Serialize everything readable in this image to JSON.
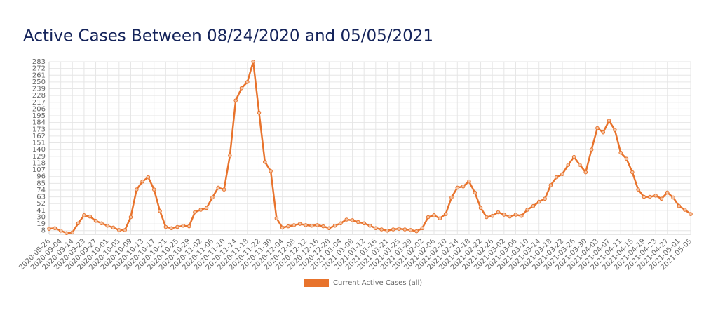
{
  "chart_data": {
    "type": "line",
    "title": "Active Cases Between 08/24/2020 and 05/05/2021",
    "categories": [
      "2020-08-26",
      null,
      "2020-09-04",
      null,
      "2020-09-14",
      null,
      "2020-09-23",
      null,
      "2020-09-27",
      null,
      "2020-10-01",
      null,
      "2020-10-05",
      null,
      "2020-10-09",
      null,
      "2020-10-13",
      null,
      "2020-10-17",
      null,
      "2020-10-21",
      null,
      "2020-10-25",
      null,
      "2020-10-29",
      null,
      "2020-11-02",
      null,
      "2020-11-06",
      null,
      "2020-11-10",
      null,
      "2020-11-14",
      null,
      "2020-11-18",
      null,
      "2020-11-22",
      null,
      "2020-11-30",
      null,
      "2020-12-04",
      null,
      "2020-12-08",
      null,
      "2020-12-12",
      null,
      "2020-12-16",
      null,
      "2020-12-20",
      null,
      "2021-01-04",
      null,
      "2021-01-08",
      null,
      "2021-01-12",
      null,
      "2021-01-16",
      null,
      "2021-01-21",
      null,
      "2021-01-25",
      null,
      "2021-01-29",
      null,
      "2021-02-02",
      null,
      "2021-02-06",
      null,
      "2021-02-10",
      null,
      "2021-02-14",
      null,
      "2021-02-18",
      null,
      "2021-02-22",
      null,
      "2021-02-26",
      null,
      "2021-03-02",
      null,
      "2021-03-06",
      null,
      "2021-03-10",
      null,
      "2021-03-14",
      null,
      "2021-03-18",
      null,
      "2021-03-22",
      null,
      "2021-03-26",
      null,
      "2021-03-30",
      null,
      "2021-04-03",
      null,
      "2021-04-07",
      null,
      "2021-04-11",
      null,
      "2021-04-15",
      null,
      "2021-04-19",
      null,
      "2021-04-23",
      null,
      "2021-04-27",
      null,
      "2021-05-01",
      null,
      "2021-05-05"
    ],
    "series": [
      {
        "name": "Current Active Cases (all)",
        "color": "#e8732c",
        "values": [
          11,
          12,
          8,
          4,
          5,
          20,
          33,
          31,
          24,
          20,
          16,
          13,
          9,
          9,
          30,
          75,
          88,
          95,
          75,
          40,
          14,
          12,
          14,
          16,
          15,
          38,
          42,
          45,
          62,
          78,
          75,
          130,
          220,
          240,
          250,
          283,
          200,
          120,
          105,
          28,
          13,
          15,
          17,
          19,
          17,
          16,
          17,
          15,
          12,
          16,
          20,
          26,
          25,
          22,
          20,
          16,
          12,
          10,
          8,
          10,
          11,
          10,
          9,
          7,
          12,
          30,
          33,
          28,
          35,
          62,
          78,
          80,
          88,
          70,
          45,
          30,
          32,
          38,
          34,
          31,
          34,
          32,
          42,
          48,
          55,
          60,
          82,
          95,
          100,
          115,
          128,
          115,
          103,
          140,
          175,
          168,
          187,
          172,
          135,
          125,
          103,
          75,
          63,
          63,
          65,
          60,
          70,
          62,
          48,
          42,
          35
        ]
      }
    ],
    "ylim": [
      2,
      283
    ],
    "yticks": [
      8,
      19,
      30,
      41,
      52,
      63,
      74,
      85,
      96,
      107,
      118,
      129,
      140,
      151,
      162,
      173,
      184,
      195,
      206,
      217,
      228,
      239,
      250,
      261,
      272,
      283
    ],
    "grid": true
  }
}
